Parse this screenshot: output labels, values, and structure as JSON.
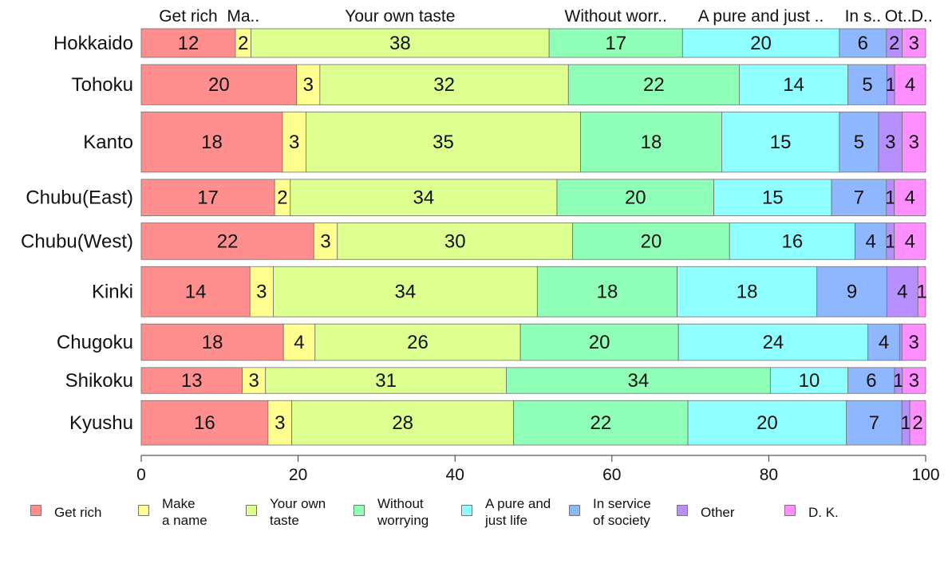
{
  "chart_data": {
    "type": "bar",
    "orientation": "horizontal",
    "stacked": true,
    "categories": [
      "Hokkaido",
      "Tohoku",
      "Kanto",
      "Chubu(East)",
      "Chubu(West)",
      "Kinki",
      "Chugoku",
      "Shikoku",
      "Kyushu"
    ],
    "series": [
      {
        "name": "Get rich",
        "values": [
          12,
          20,
          18,
          17,
          22,
          14,
          18,
          13,
          16
        ]
      },
      {
        "name": "Make a name",
        "values": [
          2,
          3,
          3,
          2,
          3,
          3,
          4,
          3,
          3
        ]
      },
      {
        "name": "Your own taste",
        "values": [
          38,
          32,
          35,
          34,
          30,
          34,
          26,
          31,
          28
        ]
      },
      {
        "name": "Without worrying",
        "values": [
          17,
          22,
          18,
          20,
          20,
          18,
          20,
          34,
          22
        ]
      },
      {
        "name": "A pure and just life",
        "values": [
          20,
          14,
          15,
          15,
          16,
          18,
          24,
          10,
          20
        ]
      },
      {
        "name": "In service of society",
        "values": [
          6,
          5,
          5,
          7,
          4,
          9,
          4,
          6,
          7
        ]
      },
      {
        "name": "Other",
        "values": [
          2,
          1,
          3,
          1,
          1,
          4,
          0.3,
          1,
          1
        ]
      },
      {
        "name": "D. K.",
        "values": [
          3,
          4,
          3,
          4,
          4,
          1,
          3,
          3,
          2
        ]
      }
    ],
    "data_labels": [
      [
        "12",
        "2",
        "38",
        "17",
        "20",
        "6",
        "2",
        "3"
      ],
      [
        "20",
        "3",
        "32",
        "22",
        "14",
        "5",
        "1",
        "4"
      ],
      [
        "18",
        "3",
        "35",
        "18",
        "15",
        "5",
        "3",
        "3"
      ],
      [
        "17",
        "2",
        "34",
        "20",
        "15",
        "7",
        "1",
        "4"
      ],
      [
        "22",
        "3",
        "30",
        "20",
        "16",
        "4",
        "1",
        "4"
      ],
      [
        "14",
        "3",
        "34",
        "18",
        "18",
        "9",
        "4",
        "1"
      ],
      [
        "18",
        "4",
        "26",
        "20",
        "24",
        "4",
        "",
        "3"
      ],
      [
        "13",
        "3",
        "31",
        "34",
        "10",
        "6",
        "1",
        "3"
      ],
      [
        "16",
        "3",
        "28",
        "22",
        "20",
        "7",
        "1",
        "2"
      ]
    ],
    "row_weights": [
      1.0,
      1.4,
      2.1,
      1.27,
      1.27,
      1.75,
      1.27,
      0.9,
      1.55
    ],
    "top_labels": [
      "Get rich",
      "Ma..",
      "Your own taste",
      "Without worr..",
      "A pure and just ..",
      "In s..",
      "Ot..",
      "D.."
    ],
    "legend_labels": [
      "Get rich",
      "Make\na name",
      "Your own\ntaste",
      "Without\nworrying",
      "A pure and\njust life",
      "In service\nof society",
      "Other",
      "D. K."
    ],
    "colors": [
      "#ff8f8f",
      "#ffff8f",
      "#dcff8f",
      "#8fffb7",
      "#8fffff",
      "#8fb7ff",
      "#b78fff",
      "#ff8fff"
    ],
    "xlim": [
      0,
      100
    ],
    "xticks": [
      0,
      20,
      40,
      60,
      80,
      100
    ],
    "title": "",
    "xlabel": "",
    "ylabel": "",
    "grid": false,
    "legend_position": "bottom"
  }
}
